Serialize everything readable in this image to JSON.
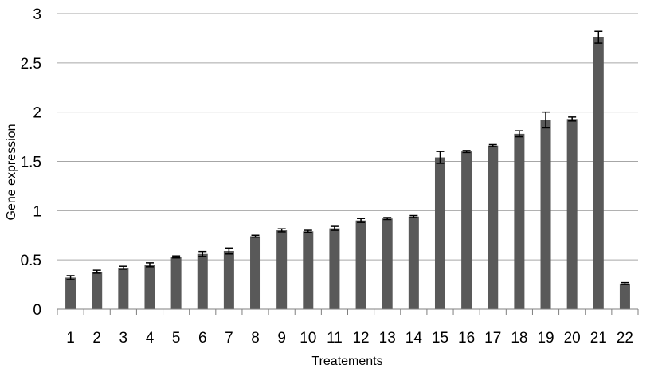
{
  "chart_data": {
    "type": "bar",
    "title": "",
    "xlabel": "Treatements",
    "ylabel": "Gene expression",
    "ylim": [
      0,
      3
    ],
    "yticks": [
      0,
      0.5,
      1,
      1.5,
      2,
      2.5,
      3
    ],
    "ytick_labels": [
      "0",
      "0.5",
      "1",
      "1.5",
      "2",
      "2.5",
      "3"
    ],
    "grid": true,
    "legend": "none",
    "bar_color": "#595959",
    "categories": [
      "1",
      "2",
      "3",
      "4",
      "5",
      "6",
      "7",
      "8",
      "9",
      "10",
      "11",
      "12",
      "13",
      "14",
      "15",
      "16",
      "17",
      "18",
      "19",
      "20",
      "21",
      "22"
    ],
    "values": [
      0.32,
      0.38,
      0.42,
      0.45,
      0.53,
      0.56,
      0.59,
      0.74,
      0.8,
      0.79,
      0.82,
      0.9,
      0.92,
      0.94,
      1.54,
      1.6,
      1.66,
      1.78,
      1.92,
      1.93,
      2.76,
      0.26
    ],
    "errors": [
      0.02,
      0.015,
      0.015,
      0.02,
      0.01,
      0.025,
      0.03,
      0.01,
      0.015,
      0.01,
      0.02,
      0.02,
      0.01,
      0.01,
      0.06,
      0.01,
      0.01,
      0.03,
      0.08,
      0.02,
      0.06,
      0.01
    ]
  }
}
